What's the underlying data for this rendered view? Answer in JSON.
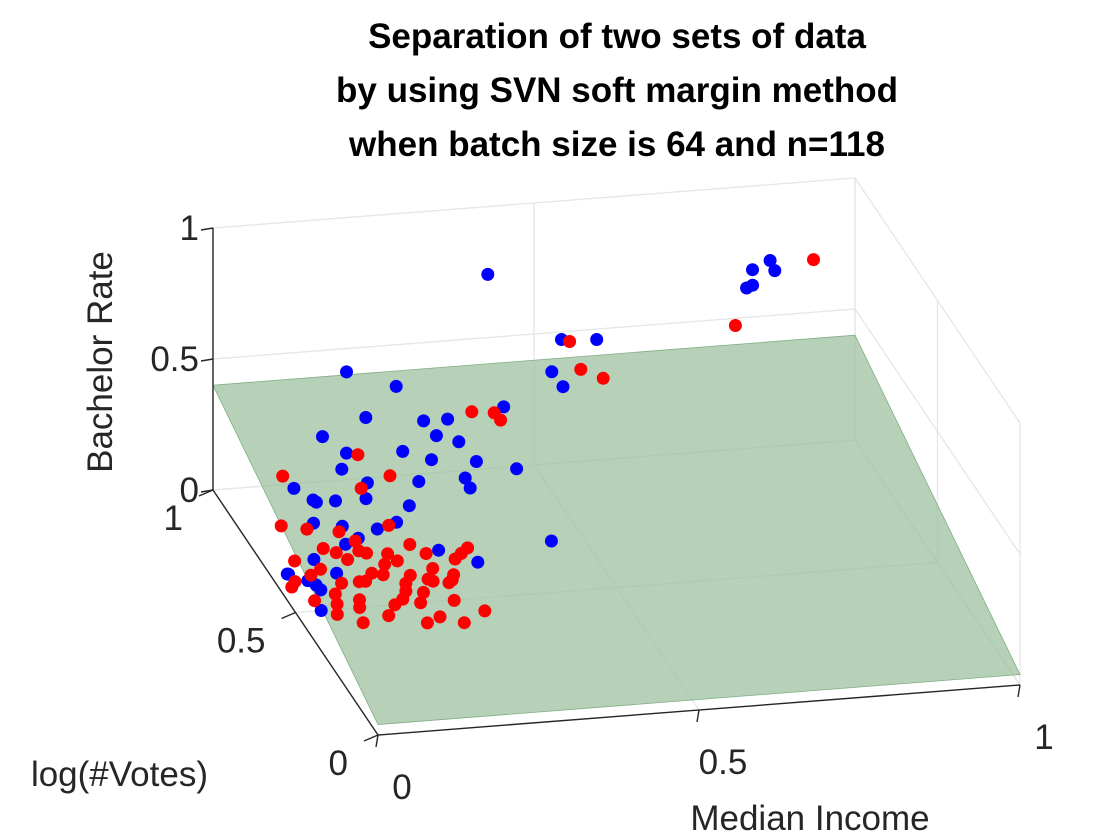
{
  "chart_data": {
    "type": "scatter",
    "title": [
      "Separation of two sets of data",
      "by using SVN soft margin method",
      "when batch size is 64 and n=118"
    ],
    "xlabel": "Median Income",
    "ylabel": "log(#Votes)",
    "zlabel": "Bachelor Rate",
    "xlim": [
      0,
      1
    ],
    "ylim": [
      0,
      1
    ],
    "zlim": [
      0,
      1
    ],
    "x_ticks": [
      "0",
      "0.5",
      "1"
    ],
    "y_ticks": [
      "0",
      "0.5",
      "1"
    ],
    "z_ticks": [
      "0",
      "0.5",
      "1"
    ],
    "grid": true,
    "colors": {
      "class1": "#0000ff",
      "class2": "#ff0000",
      "plane": "#9dc19f"
    },
    "series": [
      {
        "color": "blue",
        "points": [
          [
            0.79,
            0.84,
            0.77
          ],
          [
            0.82,
            0.92,
            0.7
          ],
          [
            0.86,
            0.97,
            0.74
          ],
          [
            0.83,
            0.96,
            0.72
          ],
          [
            0.87,
            0.98,
            0.69
          ],
          [
            0.41,
            0.93,
            0.81
          ],
          [
            0.53,
            0.95,
            0.52
          ],
          [
            0.59,
            0.97,
            0.49
          ],
          [
            0.52,
            0.97,
            0.38
          ],
          [
            0.54,
            0.98,
            0.31
          ],
          [
            0.44,
            0.95,
            0.28
          ],
          [
            0.35,
            0.94,
            0.26
          ],
          [
            0.31,
            0.93,
            0.27
          ],
          [
            0.37,
            0.95,
            0.16
          ],
          [
            0.33,
            0.93,
            0.21
          ],
          [
            0.19,
            0.93,
            0.48
          ],
          [
            0.27,
            0.94,
            0.4
          ],
          [
            0.22,
            0.93,
            0.3
          ],
          [
            0.15,
            0.92,
            0.25
          ],
          [
            0.19,
            0.93,
            0.17
          ],
          [
            0.18,
            0.92,
            0.12
          ],
          [
            0.22,
            0.92,
            0.06
          ],
          [
            0.33,
            0.96,
            0.09
          ],
          [
            0.28,
            0.94,
            0.15
          ],
          [
            0.09,
            0.86,
            0.12
          ],
          [
            0.21,
            0.89,
            0.03
          ],
          [
            0.16,
            0.88,
            0.04
          ],
          [
            0.12,
            0.86,
            0.07
          ],
          [
            0.3,
            0.92,
            0.05
          ],
          [
            0.4,
            0.96,
            0.07
          ],
          [
            0.38,
            0.95,
            0.02
          ],
          [
            0.46,
            0.95,
            0.04
          ],
          [
            0.28,
            0.9,
            -0.02
          ],
          [
            0.18,
            0.82,
            -0.05
          ],
          [
            0.15,
            0.8,
            0.02
          ],
          [
            0.1,
            0.78,
            0.06
          ],
          [
            0.12,
            0.84,
            0.08
          ],
          [
            0.22,
            0.86,
            -0.06
          ],
          [
            0.25,
            0.86,
            -0.04
          ],
          [
            0.08,
            0.7,
            0.0
          ],
          [
            0.3,
            0.8,
            -0.1
          ],
          [
            0.05,
            0.62,
            0.0
          ],
          [
            0.06,
            0.58,
            0.0
          ],
          [
            0.0,
            0.55,
            0.1
          ],
          [
            0.02,
            0.62,
            0.03
          ],
          [
            0.15,
            0.78,
            -0.03
          ],
          [
            0.32,
            0.64,
            0.0
          ],
          [
            0.45,
            0.7,
            0.0
          ],
          [
            0.04,
            0.5,
            0.0
          ],
          [
            0.1,
            0.64,
            0.0
          ],
          [
            0.38,
            0.92,
            0.01
          ],
          [
            0.05,
            0.57,
            0.03
          ]
        ]
      },
      {
        "color": "red",
        "points": [
          [
            0.77,
            0.83,
            0.64
          ],
          [
            0.92,
            0.94,
            0.76
          ],
          [
            0.54,
            0.94,
            0.52
          ],
          [
            0.56,
            0.95,
            0.4
          ],
          [
            0.6,
            0.97,
            0.34
          ],
          [
            0.38,
            0.91,
            0.31
          ],
          [
            0.42,
            0.93,
            0.28
          ],
          [
            0.43,
            0.93,
            0.25
          ],
          [
            0.2,
            0.9,
            0.19
          ],
          [
            0.07,
            0.85,
            0.18
          ],
          [
            0.25,
            0.9,
            0.1
          ],
          [
            0.2,
            0.88,
            0.08
          ],
          [
            0.06,
            0.82,
            0.02
          ],
          [
            0.1,
            0.82,
            0.0
          ],
          [
            0.15,
            0.82,
            -0.02
          ],
          [
            0.17,
            0.8,
            -0.04
          ],
          [
            0.23,
            0.83,
            -0.02
          ],
          [
            0.11,
            0.76,
            -0.02
          ],
          [
            0.18,
            0.77,
            -0.06
          ],
          [
            0.25,
            0.78,
            -0.05
          ],
          [
            0.05,
            0.7,
            0.0
          ],
          [
            0.12,
            0.72,
            0.0
          ],
          [
            0.2,
            0.72,
            -0.02
          ],
          [
            0.26,
            0.72,
            -0.03
          ],
          [
            0.32,
            0.74,
            -0.06
          ],
          [
            0.08,
            0.66,
            0.0
          ],
          [
            0.16,
            0.66,
            -0.03
          ],
          [
            0.22,
            0.66,
            -0.05
          ],
          [
            0.29,
            0.67,
            -0.07
          ],
          [
            0.02,
            0.6,
            0.0
          ],
          [
            0.1,
            0.61,
            -0.01
          ],
          [
            0.14,
            0.62,
            -0.02
          ],
          [
            0.2,
            0.61,
            -0.03
          ],
          [
            0.27,
            0.62,
            -0.05
          ],
          [
            0.04,
            0.54,
            0.0
          ],
          [
            0.11,
            0.54,
            -0.01
          ],
          [
            0.18,
            0.55,
            -0.03
          ],
          [
            0.26,
            0.55,
            -0.05
          ],
          [
            0.06,
            0.48,
            0.0
          ],
          [
            0.14,
            0.48,
            -0.02
          ],
          [
            0.22,
            0.48,
            -0.04
          ],
          [
            0.3,
            0.52,
            -0.07
          ],
          [
            0.09,
            0.44,
            0.0
          ],
          [
            0.19,
            0.44,
            -0.02
          ],
          [
            0.25,
            0.45,
            -0.04
          ],
          [
            0.12,
            0.58,
            0.02
          ],
          [
            0.24,
            0.6,
            -0.02
          ],
          [
            0.18,
            0.66,
            0.0
          ],
          [
            0.3,
            0.7,
            -0.04
          ],
          [
            0.15,
            0.7,
            0.02
          ],
          [
            0.34,
            0.78,
            -0.08
          ],
          [
            0.08,
            0.57,
            -0.01
          ],
          [
            0.22,
            0.58,
            -0.04
          ],
          [
            0.28,
            0.64,
            -0.06
          ],
          [
            0.16,
            0.52,
            -0.02
          ],
          [
            0.03,
            0.62,
            0.0
          ],
          [
            0.13,
            0.69,
            0.0
          ],
          [
            0.21,
            0.7,
            -0.03
          ],
          [
            0.26,
            0.68,
            -0.05
          ],
          [
            0.1,
            0.5,
            0.0
          ],
          [
            0.2,
            0.52,
            -0.02
          ],
          [
            0.06,
            0.64,
            0.0
          ],
          [
            0.17,
            0.63,
            -0.01
          ],
          [
            0.24,
            0.63,
            -0.04
          ],
          [
            0.07,
            0.52,
            0.0
          ],
          [
            0.19,
            0.57,
            -0.02
          ]
        ]
      }
    ],
    "surface": {
      "type": "plane",
      "corners": [
        [
          0,
          0,
          0.04
        ],
        [
          1,
          0,
          0.04
        ],
        [
          1,
          1,
          0.4
        ],
        [
          0,
          1,
          0.4
        ]
      ]
    }
  }
}
